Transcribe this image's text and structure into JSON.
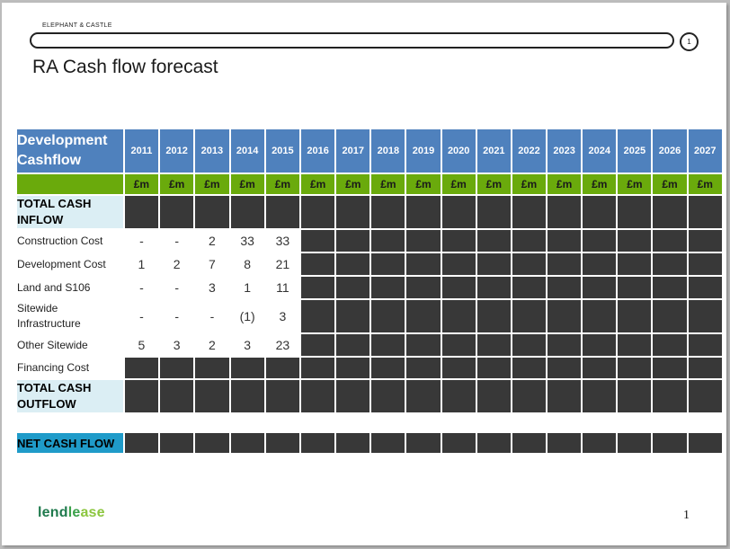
{
  "header": {
    "brand": "ELEPHANT & CASTLE",
    "badge": "1",
    "title": "RA Cash flow forecast"
  },
  "table": {
    "header_label": [
      "Development",
      "Cashflow"
    ],
    "years": [
      "2011",
      "2012",
      "2013",
      "2014",
      "2015",
      "2016",
      "2017",
      "2018",
      "2019",
      "2020",
      "2021",
      "2022",
      "2023",
      "2024",
      "2025",
      "2026",
      "2027"
    ],
    "unit": "£m",
    "total_inflow_label": [
      "TOTAL CASH",
      "INFLOW"
    ],
    "rows": [
      {
        "label": [
          "Construction Cost"
        ],
        "values": [
          "-",
          "-",
          "2",
          "33",
          "33"
        ]
      },
      {
        "label": [
          "Development Cost"
        ],
        "values": [
          "1",
          "2",
          "7",
          "8",
          "21"
        ]
      },
      {
        "label": [
          "Land and S106"
        ],
        "values": [
          "-",
          "-",
          "3",
          "1",
          "11"
        ]
      },
      {
        "label": [
          "Sitewide",
          "Infrastructure"
        ],
        "values": [
          "-",
          "-",
          "-",
          "(1)",
          "3"
        ]
      },
      {
        "label": [
          "Other Sitewide"
        ],
        "values": [
          "5",
          "3",
          "2",
          "3",
          "23"
        ]
      }
    ],
    "financing_label": [
      "Financing Cost"
    ],
    "total_outflow_label": [
      "TOTAL CASH",
      "OUTFLOW"
    ],
    "net_label": "NET CASH FLOW"
  },
  "footer": {
    "logo_parts": [
      "lend",
      "le",
      "ase"
    ],
    "page_number": "1"
  },
  "colors": {
    "header_blue": "#4f81bd",
    "unit_green": "#6aaa0c",
    "total_bg": "#dbeef4",
    "net_blue": "#1f9bc9",
    "dark_cell": "#383838"
  }
}
